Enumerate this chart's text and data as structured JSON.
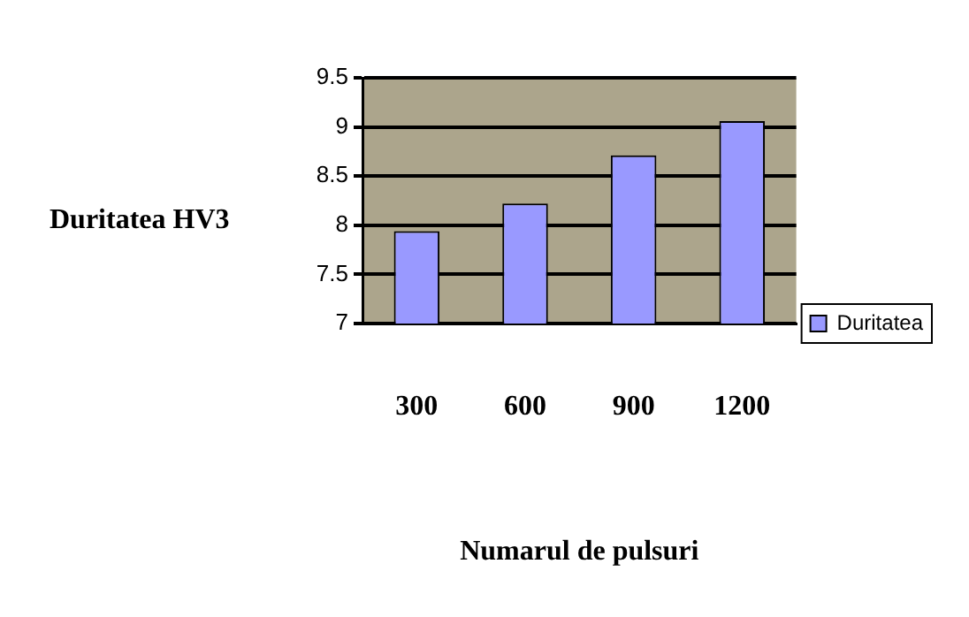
{
  "chart_data": {
    "type": "bar",
    "ylabel": "Duritatea HV3",
    "xlabel": "Numarul de pulsuri",
    "categories": [
      "300",
      "600",
      "900",
      "1200"
    ],
    "series": [
      {
        "name": "Duritatea",
        "color": "#9999ff",
        "values": [
          7.94,
          8.22,
          8.71,
          9.06
        ]
      }
    ],
    "ylim": [
      7,
      9.5
    ],
    "yticks": [
      7,
      7.5,
      8,
      8.5,
      9,
      9.5
    ],
    "grid": "y",
    "legend": "right"
  }
}
